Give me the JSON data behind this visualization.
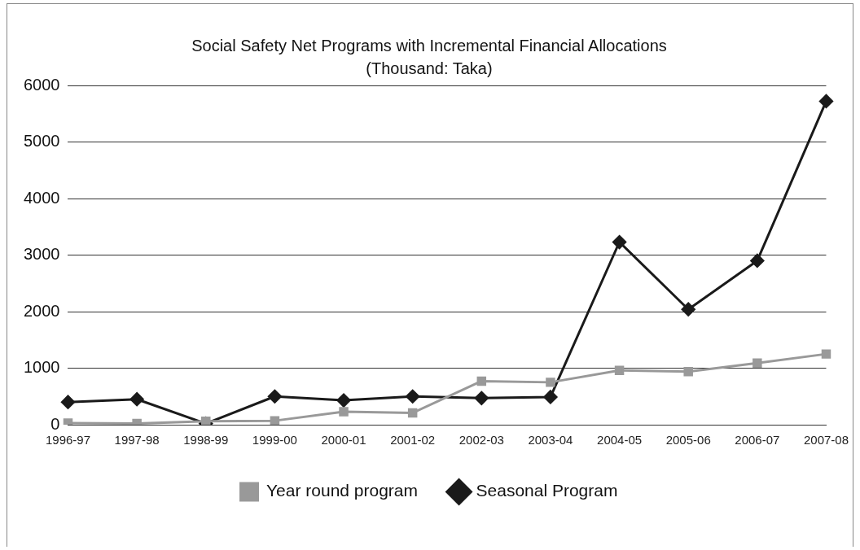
{
  "chart_data": {
    "type": "line",
    "title": "Social Safety Net Programs with Incremental Financial Allocations",
    "subtitle": "(Thousand: Taka)",
    "categories": [
      "1996-97",
      "1997-98",
      "1998-99",
      "1999-00",
      "2000-01",
      "2001-02",
      "2002-03",
      "2003-04",
      "2004-05",
      "2005-06",
      "2006-07",
      "2007-08"
    ],
    "series": [
      {
        "name": "Seasonal Program",
        "color": "#1a1a1a",
        "marker": "diamond",
        "values": [
          400,
          450,
          20,
          500,
          430,
          500,
          470,
          490,
          3230,
          2040,
          2900,
          5720
        ]
      },
      {
        "name": "Year round program",
        "color": "#999999",
        "marker": "square",
        "values": [
          30,
          20,
          60,
          70,
          230,
          210,
          770,
          750,
          960,
          940,
          1090,
          1250
        ]
      }
    ],
    "ylim": [
      0,
      6000
    ],
    "yticks": [
      0,
      1000,
      2000,
      3000,
      4000,
      5000,
      6000
    ],
    "grid": "y",
    "legend": "bottom",
    "line_style": "solid"
  }
}
